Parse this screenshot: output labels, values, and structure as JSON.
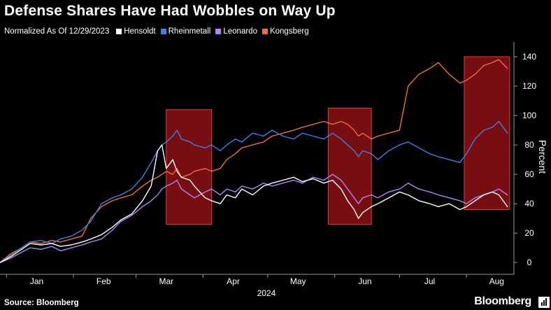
{
  "title": "Defense Shares Have Had Wobbles on Way Up",
  "normalized_label": "Normalized As Of 12/29/2023",
  "source": "Source: Bloomberg",
  "brand": "Bloomberg",
  "colors": {
    "Hensoldt": "#ffffff",
    "Rheinmetall": "#3f7fe6",
    "Leonardo": "#b483f0",
    "Kongsberg": "#f26b3f",
    "highlight_fill": "#c0161b",
    "highlight_stroke": "#e43a3a",
    "axis": "#9a9a9a"
  },
  "chart_data": {
    "type": "line",
    "xlabel": "2024",
    "ylabel": "Percent",
    "x_tick_labels": [
      "Jan",
      "Feb",
      "Mar",
      "Apr",
      "May",
      "Jun",
      "Jul",
      "Aug"
    ],
    "x_tick_dates": [
      "2024-01-15",
      "2024-02-15",
      "2024-03-15",
      "2024-04-15",
      "2024-05-15",
      "2024-06-15",
      "2024-07-15",
      "2024-08-15"
    ],
    "y_tick_labels": [
      "0",
      "20",
      "40",
      "60",
      "80",
      "100",
      "120",
      "140"
    ],
    "ylim": [
      -8,
      150
    ],
    "xlim": [
      "2023-12-29",
      "2024-08-23"
    ],
    "grid": false,
    "legend_position": "top-left",
    "highlight_ranges": [
      {
        "start": "2024-03-15",
        "end": "2024-04-05",
        "ymin": 26,
        "ymax": 104
      },
      {
        "start": "2024-05-29",
        "end": "2024-06-18",
        "ymin": 26,
        "ymax": 105
      },
      {
        "start": "2024-07-31",
        "end": "2024-08-21",
        "ymin": 36,
        "ymax": 140
      }
    ],
    "series": [
      {
        "name": "Hensoldt",
        "points": [
          [
            "2023-12-29",
            0
          ],
          [
            "2024-01-03",
            4
          ],
          [
            "2024-01-08",
            9
          ],
          [
            "2024-01-12",
            13
          ],
          [
            "2024-01-17",
            12
          ],
          [
            "2024-01-22",
            13
          ],
          [
            "2024-01-26",
            11
          ],
          [
            "2024-01-31",
            12
          ],
          [
            "2024-02-05",
            14
          ],
          [
            "2024-02-09",
            16
          ],
          [
            "2024-02-14",
            19
          ],
          [
            "2024-02-19",
            24
          ],
          [
            "2024-02-23",
            29
          ],
          [
            "2024-02-28",
            33
          ],
          [
            "2024-03-04",
            42
          ],
          [
            "2024-03-08",
            52
          ],
          [
            "2024-03-11",
            76
          ],
          [
            "2024-03-13",
            80
          ],
          [
            "2024-03-15",
            64
          ],
          [
            "2024-03-18",
            70
          ],
          [
            "2024-03-20",
            62
          ],
          [
            "2024-03-22",
            58
          ],
          [
            "2024-03-26",
            56
          ],
          [
            "2024-03-28",
            52
          ],
          [
            "2024-04-02",
            44
          ],
          [
            "2024-04-05",
            42
          ],
          [
            "2024-04-09",
            40
          ],
          [
            "2024-04-12",
            46
          ],
          [
            "2024-04-16",
            44
          ],
          [
            "2024-04-19",
            50
          ],
          [
            "2024-04-24",
            46
          ],
          [
            "2024-04-29",
            52
          ],
          [
            "2024-05-03",
            54
          ],
          [
            "2024-05-08",
            56
          ],
          [
            "2024-05-13",
            58
          ],
          [
            "2024-05-17",
            55
          ],
          [
            "2024-05-22",
            57
          ],
          [
            "2024-05-27",
            54
          ],
          [
            "2024-05-31",
            56
          ],
          [
            "2024-06-04",
            50
          ],
          [
            "2024-06-07",
            42
          ],
          [
            "2024-06-10",
            36
          ],
          [
            "2024-06-12",
            30
          ],
          [
            "2024-06-14",
            34
          ],
          [
            "2024-06-18",
            38
          ],
          [
            "2024-06-21",
            40
          ],
          [
            "2024-06-26",
            44
          ],
          [
            "2024-07-01",
            48
          ],
          [
            "2024-07-05",
            46
          ],
          [
            "2024-07-10",
            42
          ],
          [
            "2024-07-15",
            40
          ],
          [
            "2024-07-19",
            38
          ],
          [
            "2024-07-24",
            40
          ],
          [
            "2024-07-29",
            36
          ],
          [
            "2024-08-01",
            38
          ],
          [
            "2024-08-05",
            42
          ],
          [
            "2024-08-09",
            46
          ],
          [
            "2024-08-13",
            48
          ],
          [
            "2024-08-16",
            46
          ],
          [
            "2024-08-20",
            38
          ]
        ]
      },
      {
        "name": "Rheinmetall",
        "points": [
          [
            "2023-12-29",
            0
          ],
          [
            "2024-01-03",
            5
          ],
          [
            "2024-01-08",
            10
          ],
          [
            "2024-01-12",
            14
          ],
          [
            "2024-01-17",
            15
          ],
          [
            "2024-01-22",
            13
          ],
          [
            "2024-01-26",
            16
          ],
          [
            "2024-01-31",
            18
          ],
          [
            "2024-02-05",
            22
          ],
          [
            "2024-02-09",
            28
          ],
          [
            "2024-02-14",
            40
          ],
          [
            "2024-02-19",
            44
          ],
          [
            "2024-02-23",
            46
          ],
          [
            "2024-02-28",
            50
          ],
          [
            "2024-03-04",
            58
          ],
          [
            "2024-03-08",
            68
          ],
          [
            "2024-03-11",
            76
          ],
          [
            "2024-03-13",
            80
          ],
          [
            "2024-03-15",
            82
          ],
          [
            "2024-03-18",
            86
          ],
          [
            "2024-03-20",
            90
          ],
          [
            "2024-03-22",
            84
          ],
          [
            "2024-03-26",
            82
          ],
          [
            "2024-03-28",
            80
          ],
          [
            "2024-04-02",
            78
          ],
          [
            "2024-04-05",
            80
          ],
          [
            "2024-04-09",
            76
          ],
          [
            "2024-04-12",
            80
          ],
          [
            "2024-04-16",
            84
          ],
          [
            "2024-04-19",
            82
          ],
          [
            "2024-04-24",
            88
          ],
          [
            "2024-04-29",
            86
          ],
          [
            "2024-05-03",
            90
          ],
          [
            "2024-05-08",
            86
          ],
          [
            "2024-05-13",
            84
          ],
          [
            "2024-05-17",
            88
          ],
          [
            "2024-05-22",
            86
          ],
          [
            "2024-05-27",
            84
          ],
          [
            "2024-05-31",
            88
          ],
          [
            "2024-06-04",
            84
          ],
          [
            "2024-06-07",
            80
          ],
          [
            "2024-06-10",
            76
          ],
          [
            "2024-06-12",
            72
          ],
          [
            "2024-06-14",
            76
          ],
          [
            "2024-06-18",
            74
          ],
          [
            "2024-06-21",
            70
          ],
          [
            "2024-06-26",
            76
          ],
          [
            "2024-07-01",
            80
          ],
          [
            "2024-07-05",
            82
          ],
          [
            "2024-07-10",
            78
          ],
          [
            "2024-07-15",
            74
          ],
          [
            "2024-07-19",
            72
          ],
          [
            "2024-07-24",
            70
          ],
          [
            "2024-07-29",
            68
          ],
          [
            "2024-08-01",
            74
          ],
          [
            "2024-08-05",
            84
          ],
          [
            "2024-08-09",
            90
          ],
          [
            "2024-08-13",
            92
          ],
          [
            "2024-08-16",
            96
          ],
          [
            "2024-08-20",
            88
          ]
        ]
      },
      {
        "name": "Leonardo",
        "points": [
          [
            "2023-12-29",
            0
          ],
          [
            "2024-01-03",
            3
          ],
          [
            "2024-01-08",
            7
          ],
          [
            "2024-01-12",
            10
          ],
          [
            "2024-01-17",
            9
          ],
          [
            "2024-01-22",
            11
          ],
          [
            "2024-01-26",
            8
          ],
          [
            "2024-01-31",
            10
          ],
          [
            "2024-02-05",
            12
          ],
          [
            "2024-02-09",
            14
          ],
          [
            "2024-02-14",
            16
          ],
          [
            "2024-02-19",
            22
          ],
          [
            "2024-02-23",
            28
          ],
          [
            "2024-02-28",
            32
          ],
          [
            "2024-03-04",
            38
          ],
          [
            "2024-03-08",
            42
          ],
          [
            "2024-03-11",
            46
          ],
          [
            "2024-03-13",
            50
          ],
          [
            "2024-03-15",
            52
          ],
          [
            "2024-03-18",
            54
          ],
          [
            "2024-03-20",
            56
          ],
          [
            "2024-03-22",
            50
          ],
          [
            "2024-03-26",
            46
          ],
          [
            "2024-03-28",
            44
          ],
          [
            "2024-04-02",
            48
          ],
          [
            "2024-04-05",
            50
          ],
          [
            "2024-04-09",
            46
          ],
          [
            "2024-04-12",
            50
          ],
          [
            "2024-04-16",
            48
          ],
          [
            "2024-04-19",
            52
          ],
          [
            "2024-04-24",
            50
          ],
          [
            "2024-04-29",
            54
          ],
          [
            "2024-05-03",
            52
          ],
          [
            "2024-05-08",
            54
          ],
          [
            "2024-05-13",
            56
          ],
          [
            "2024-05-17",
            54
          ],
          [
            "2024-05-22",
            58
          ],
          [
            "2024-05-27",
            56
          ],
          [
            "2024-05-31",
            60
          ],
          [
            "2024-06-04",
            56
          ],
          [
            "2024-06-07",
            50
          ],
          [
            "2024-06-10",
            44
          ],
          [
            "2024-06-12",
            40
          ],
          [
            "2024-06-14",
            44
          ],
          [
            "2024-06-18",
            46
          ],
          [
            "2024-06-21",
            44
          ],
          [
            "2024-06-26",
            48
          ],
          [
            "2024-07-01",
            50
          ],
          [
            "2024-07-05",
            54
          ],
          [
            "2024-07-10",
            50
          ],
          [
            "2024-07-15",
            48
          ],
          [
            "2024-07-19",
            46
          ],
          [
            "2024-07-24",
            44
          ],
          [
            "2024-07-29",
            42
          ],
          [
            "2024-08-01",
            40
          ],
          [
            "2024-08-05",
            44
          ],
          [
            "2024-08-09",
            46
          ],
          [
            "2024-08-13",
            48
          ],
          [
            "2024-08-16",
            50
          ],
          [
            "2024-08-20",
            46
          ]
        ]
      },
      {
        "name": "Kongsberg",
        "points": [
          [
            "2023-12-29",
            0
          ],
          [
            "2024-01-03",
            6
          ],
          [
            "2024-01-08",
            10
          ],
          [
            "2024-01-12",
            14
          ],
          [
            "2024-01-17",
            13
          ],
          [
            "2024-01-22",
            15
          ],
          [
            "2024-01-26",
            14
          ],
          [
            "2024-01-31",
            16
          ],
          [
            "2024-02-05",
            18
          ],
          [
            "2024-02-09",
            30
          ],
          [
            "2024-02-14",
            38
          ],
          [
            "2024-02-19",
            42
          ],
          [
            "2024-02-23",
            44
          ],
          [
            "2024-02-28",
            46
          ],
          [
            "2024-03-04",
            52
          ],
          [
            "2024-03-08",
            56
          ],
          [
            "2024-03-11",
            58
          ],
          [
            "2024-03-13",
            60
          ],
          [
            "2024-03-15",
            62
          ],
          [
            "2024-03-18",
            60
          ],
          [
            "2024-03-20",
            64
          ],
          [
            "2024-03-22",
            58
          ],
          [
            "2024-03-26",
            60
          ],
          [
            "2024-03-28",
            62
          ],
          [
            "2024-04-02",
            64
          ],
          [
            "2024-04-05",
            62
          ],
          [
            "2024-04-09",
            64
          ],
          [
            "2024-04-12",
            70
          ],
          [
            "2024-04-16",
            74
          ],
          [
            "2024-04-19",
            78
          ],
          [
            "2024-04-24",
            80
          ],
          [
            "2024-04-29",
            82
          ],
          [
            "2024-05-03",
            86
          ],
          [
            "2024-05-08",
            88
          ],
          [
            "2024-05-13",
            90
          ],
          [
            "2024-05-17",
            92
          ],
          [
            "2024-05-22",
            94
          ],
          [
            "2024-05-27",
            96
          ],
          [
            "2024-05-31",
            94
          ],
          [
            "2024-06-04",
            96
          ],
          [
            "2024-06-07",
            94
          ],
          [
            "2024-06-10",
            90
          ],
          [
            "2024-06-12",
            86
          ],
          [
            "2024-06-14",
            88
          ],
          [
            "2024-06-18",
            84
          ],
          [
            "2024-06-21",
            86
          ],
          [
            "2024-06-26",
            88
          ],
          [
            "2024-07-01",
            90
          ],
          [
            "2024-07-05",
            120
          ],
          [
            "2024-07-10",
            128
          ],
          [
            "2024-07-15",
            132
          ],
          [
            "2024-07-19",
            136
          ],
          [
            "2024-07-24",
            128
          ],
          [
            "2024-07-29",
            122
          ],
          [
            "2024-08-01",
            124
          ],
          [
            "2024-08-05",
            128
          ],
          [
            "2024-08-09",
            134
          ],
          [
            "2024-08-13",
            136
          ],
          [
            "2024-08-16",
            138
          ],
          [
            "2024-08-20",
            132
          ]
        ]
      }
    ]
  }
}
